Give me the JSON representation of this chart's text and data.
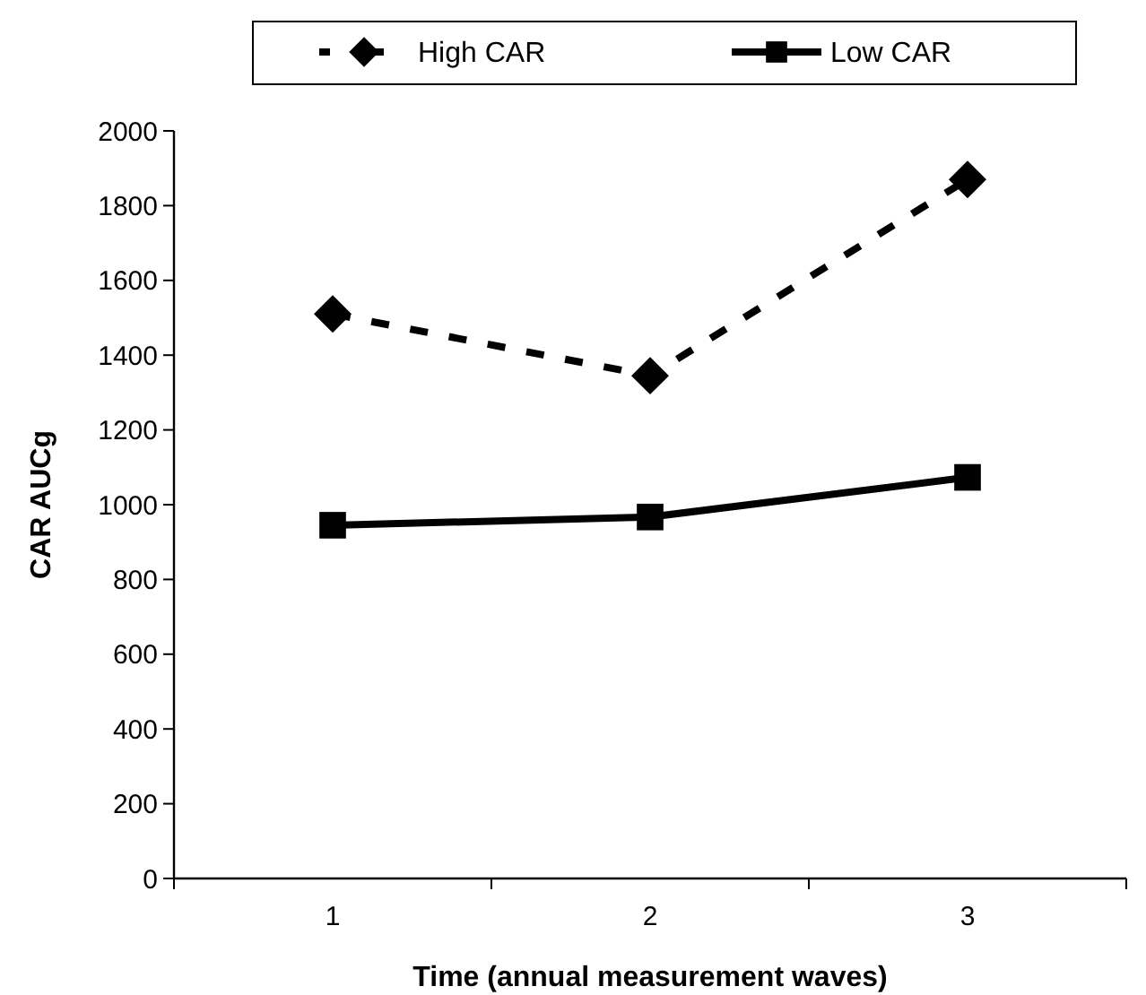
{
  "chart_data": {
    "type": "line",
    "xlabel": "Time (annual measurement waves)",
    "ylabel": "CAR AUCg",
    "categories": [
      "1",
      "2",
      "3"
    ],
    "series": [
      {
        "name": "High CAR",
        "color": "#000000",
        "values": [
          1510,
          1345,
          1870
        ],
        "marker": "diamond",
        "line_style": "dashed"
      },
      {
        "name": "Low CAR",
        "color": "#000000",
        "values": [
          945,
          967,
          1073
        ],
        "marker": "square",
        "line_style": "solid"
      }
    ],
    "ylim": [
      0,
      2000
    ],
    "yticks": [
      0,
      200,
      400,
      600,
      800,
      1000,
      1200,
      1400,
      1600,
      1800,
      2000
    ],
    "grid": false,
    "legend": "top"
  }
}
